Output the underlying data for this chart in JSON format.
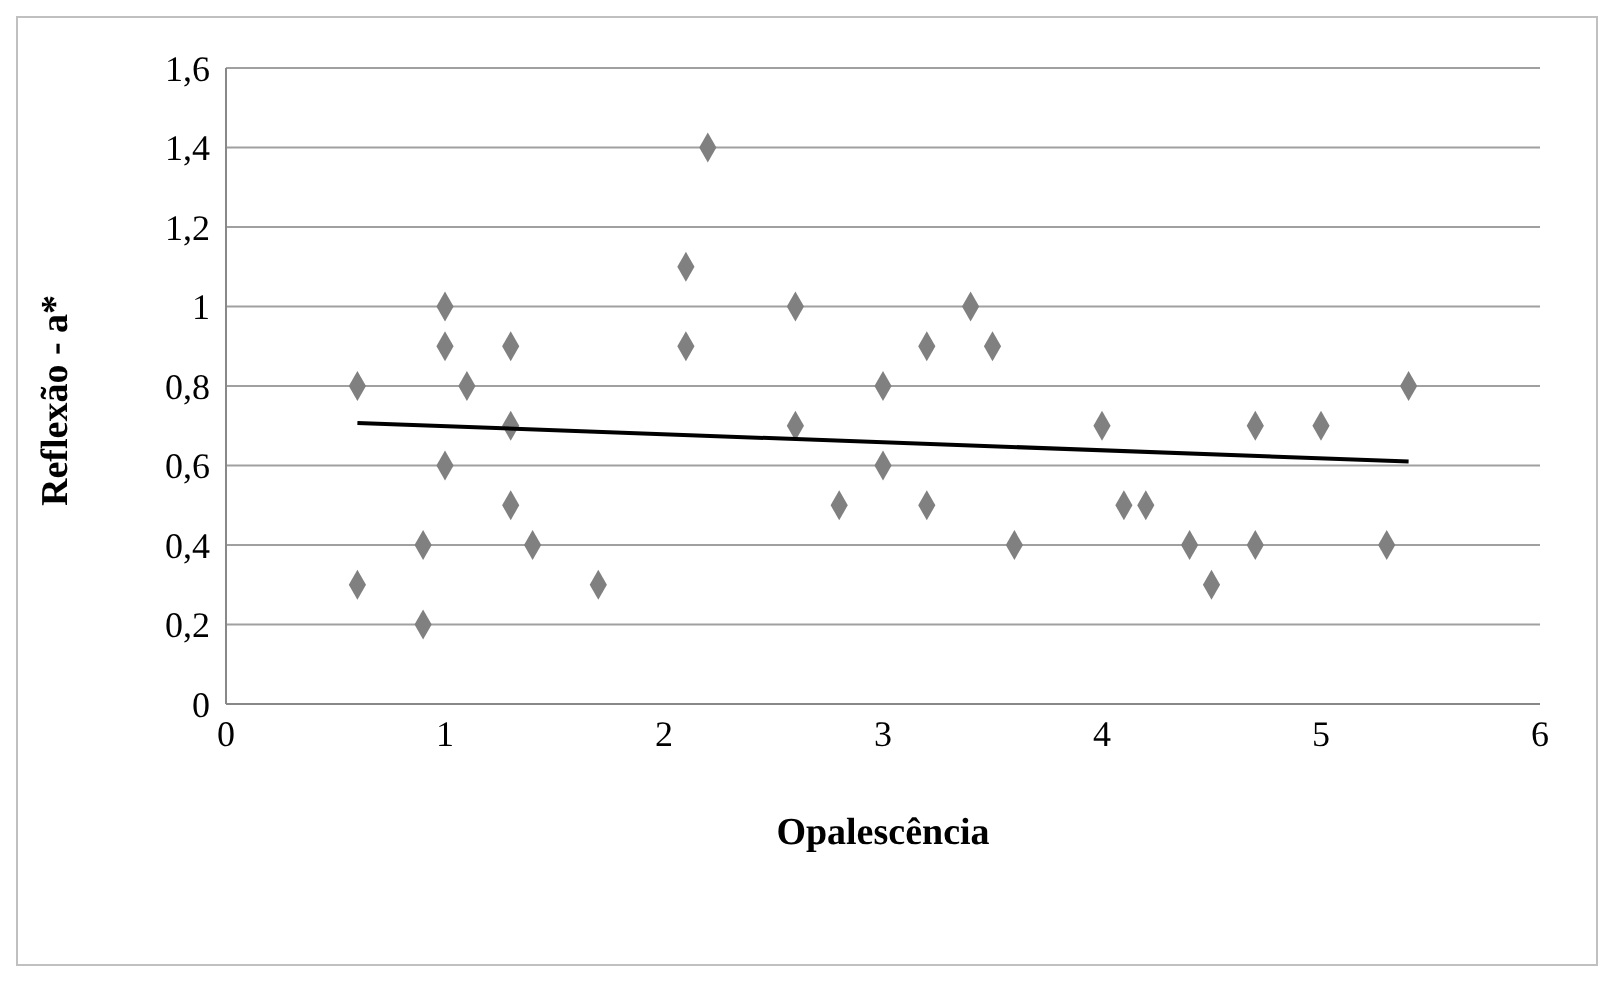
{
  "chart_data": {
    "type": "scatter",
    "xlabel": "Opalescência",
    "ylabel": "Reflexão - a*",
    "xlim": [
      0,
      6
    ],
    "xticks": [
      0,
      1,
      2,
      3,
      4,
      5,
      6
    ],
    "ylim": [
      0,
      1.6
    ],
    "yticks": [
      0,
      {
        "value": 0.2,
        "label": "0,2"
      },
      {
        "value": 0.4,
        "label": "0,4"
      },
      {
        "value": 0.6,
        "label": "0,6"
      },
      {
        "value": 0.8,
        "label": "0,8"
      },
      1,
      {
        "value": 1.2,
        "label": "1,2"
      },
      {
        "value": 1.4,
        "label": "1,4"
      },
      {
        "value": 1.6,
        "label": "1,6"
      }
    ],
    "grid": "y",
    "marker": "diamond",
    "series": [
      {
        "color": "#808080",
        "x": [
          0.6,
          0.6,
          0.9,
          0.9,
          1.0,
          1.0,
          1.0,
          1.1,
          1.3,
          1.3,
          1.3,
          1.4,
          1.7,
          2.1,
          2.1,
          2.2,
          2.6,
          2.6,
          2.8,
          3.0,
          3.0,
          3.2,
          3.2,
          3.4,
          3.5,
          3.6,
          4.0,
          4.1,
          4.2,
          4.4,
          4.5,
          4.7,
          4.7,
          5.0,
          5.3,
          5.4
        ],
        "values": [
          0.3,
          0.8,
          0.4,
          0.2,
          1.0,
          0.9,
          0.6,
          0.8,
          0.9,
          0.7,
          0.5,
          0.4,
          0.3,
          1.1,
          0.9,
          1.4,
          1.0,
          0.7,
          0.5,
          0.8,
          0.6,
          0.9,
          0.5,
          1.0,
          0.9,
          0.4,
          0.7,
          0.5,
          0.5,
          0.4,
          0.3,
          0.7,
          0.4,
          0.7,
          0.4,
          0.8
        ]
      },
      {
        "type": "line",
        "marker": "none",
        "color": "#000000",
        "x": [
          0.6,
          5.4
        ],
        "values": [
          0.707,
          0.61
        ]
      }
    ]
  }
}
